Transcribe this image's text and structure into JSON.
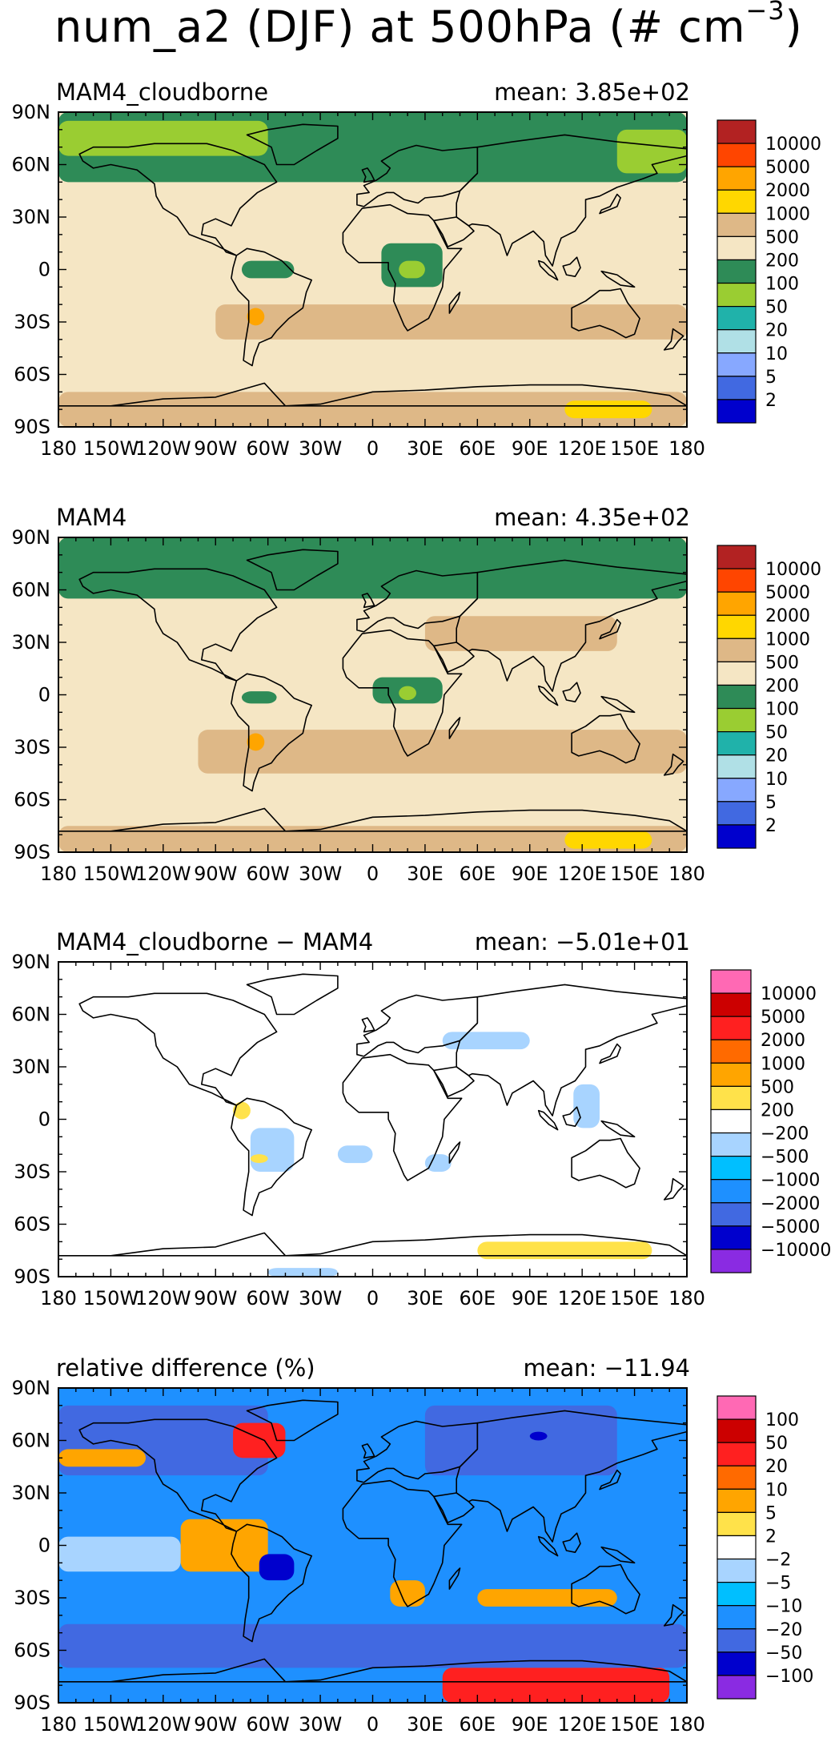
{
  "figure": {
    "title_main": "num_a2 (DJF) at 500hPa (# cm",
    "title_exp": "−3",
    "title_end": ")"
  },
  "chart_data": [
    {
      "type": "heatmap",
      "title": "MAM4_cloudborne",
      "mean_label": "mean: 3.85e+02",
      "x_ticks": [
        "180",
        "150W",
        "120W",
        "90W",
        "60W",
        "30W",
        "0",
        "30E",
        "60E",
        "90E",
        "120E",
        "150E",
        "180"
      ],
      "y_ticks": [
        "90N",
        "60N",
        "30N",
        "0",
        "30S",
        "60S",
        "90S"
      ],
      "colorbar_levels": [
        "10000",
        "5000",
        "2000",
        "1000",
        "500",
        "200",
        "100",
        "50",
        "20",
        "10",
        "5",
        "2"
      ],
      "colorbar_colors": [
        "#b22222",
        "#ff4500",
        "#ffa500",
        "#ffd700",
        "#deb887",
        "#f5e6c4",
        "#2e8b57",
        "#9acd32",
        "#20b2aa",
        "#b0e0e6",
        "#87a8ff",
        "#4169e1",
        "#0000cd"
      ],
      "base_color": "#f5e6c4",
      "features": [
        {
          "color": "#2e8b57",
          "lon": [
            -180,
            180
          ],
          "lat": [
            50,
            90
          ]
        },
        {
          "color": "#9acd32",
          "lon": [
            -180,
            -60
          ],
          "lat": [
            65,
            85
          ]
        },
        {
          "color": "#9acd32",
          "lon": [
            140,
            180
          ],
          "lat": [
            55,
            80
          ]
        },
        {
          "color": "#deb887",
          "lon": [
            -90,
            180
          ],
          "lat": [
            -40,
            -20
          ]
        },
        {
          "color": "#deb887",
          "lon": [
            -180,
            180
          ],
          "lat": [
            -90,
            -70
          ]
        },
        {
          "color": "#2e8b57",
          "lon": [
            5,
            40
          ],
          "lat": [
            -10,
            15
          ]
        },
        {
          "color": "#9acd32",
          "lon": [
            15,
            30
          ],
          "lat": [
            -5,
            5
          ]
        },
        {
          "color": "#2e8b57",
          "lon": [
            -75,
            -45
          ],
          "lat": [
            -5,
            5
          ]
        },
        {
          "color": "#ffa500",
          "lon": [
            -72,
            -62
          ],
          "lat": [
            -32,
            -22
          ]
        },
        {
          "color": "#ffd700",
          "lon": [
            110,
            160
          ],
          "lat": [
            -85,
            -75
          ]
        }
      ]
    },
    {
      "type": "heatmap",
      "title": "MAM4",
      "mean_label": "mean: 4.35e+02",
      "x_ticks": [
        "180",
        "150W",
        "120W",
        "90W",
        "60W",
        "30W",
        "0",
        "30E",
        "60E",
        "90E",
        "120E",
        "150E",
        "180"
      ],
      "y_ticks": [
        "90N",
        "60N",
        "30N",
        "0",
        "30S",
        "60S",
        "90S"
      ],
      "colorbar_levels": [
        "10000",
        "5000",
        "2000",
        "1000",
        "500",
        "200",
        "100",
        "50",
        "20",
        "10",
        "5",
        "2"
      ],
      "colorbar_colors": [
        "#b22222",
        "#ff4500",
        "#ffa500",
        "#ffd700",
        "#deb887",
        "#f5e6c4",
        "#2e8b57",
        "#9acd32",
        "#20b2aa",
        "#b0e0e6",
        "#87a8ff",
        "#4169e1",
        "#0000cd"
      ],
      "base_color": "#f5e6c4",
      "features": [
        {
          "color": "#2e8b57",
          "lon": [
            -180,
            180
          ],
          "lat": [
            55,
            90
          ]
        },
        {
          "color": "#deb887",
          "lon": [
            -100,
            180
          ],
          "lat": [
            -45,
            -20
          ]
        },
        {
          "color": "#deb887",
          "lon": [
            30,
            140
          ],
          "lat": [
            25,
            45
          ]
        },
        {
          "color": "#deb887",
          "lon": [
            -180,
            180
          ],
          "lat": [
            -90,
            -75
          ]
        },
        {
          "color": "#2e8b57",
          "lon": [
            0,
            40
          ],
          "lat": [
            -5,
            10
          ]
        },
        {
          "color": "#9acd32",
          "lon": [
            15,
            25
          ],
          "lat": [
            -3,
            5
          ]
        },
        {
          "color": "#2e8b57",
          "lon": [
            -75,
            -55
          ],
          "lat": [
            -5,
            2
          ]
        },
        {
          "color": "#ffa500",
          "lon": [
            -72,
            -62
          ],
          "lat": [
            -32,
            -22
          ]
        },
        {
          "color": "#ffd700",
          "lon": [
            110,
            160
          ],
          "lat": [
            -88,
            -78
          ]
        }
      ]
    },
    {
      "type": "heatmap",
      "title": "MAM4_cloudborne − MAM4",
      "mean_label": "mean: −5.01e+01",
      "x_ticks": [
        "180",
        "150W",
        "120W",
        "90W",
        "60W",
        "30W",
        "0",
        "30E",
        "60E",
        "90E",
        "120E",
        "150E",
        "180"
      ],
      "y_ticks": [
        "90N",
        "60N",
        "30N",
        "0",
        "30S",
        "60S",
        "90S"
      ],
      "colorbar_levels": [
        "10000",
        "5000",
        "2000",
        "1000",
        "500",
        "200",
        "−200",
        "−500",
        "−1000",
        "−2000",
        "−5000",
        "−10000"
      ],
      "colorbar_colors": [
        "#ff69b4",
        "#cc0000",
        "#ff2020",
        "#ff6a00",
        "#ffa500",
        "#ffe24a",
        "#ffffff",
        "#a8d4ff",
        "#00bfff",
        "#1e90ff",
        "#4169e1",
        "#0000cd",
        "#8a2be2"
      ],
      "base_color": "#ffffff",
      "features": [
        {
          "color": "#a8d4ff",
          "lon": [
            40,
            90
          ],
          "lat": [
            40,
            50
          ]
        },
        {
          "color": "#a8d4ff",
          "lon": [
            115,
            130
          ],
          "lat": [
            -5,
            20
          ]
        },
        {
          "color": "#a8d4ff",
          "lon": [
            -70,
            -45
          ],
          "lat": [
            -30,
            -5
          ]
        },
        {
          "color": "#a8d4ff",
          "lon": [
            -20,
            0
          ],
          "lat": [
            -25,
            -15
          ]
        },
        {
          "color": "#a8d4ff",
          "lon": [
            30,
            45
          ],
          "lat": [
            -30,
            -20
          ]
        },
        {
          "color": "#ffe24a",
          "lon": [
            -80,
            -70
          ],
          "lat": [
            0,
            10
          ]
        },
        {
          "color": "#ffe24a",
          "lon": [
            -70,
            -60
          ],
          "lat": [
            -25,
            -20
          ]
        },
        {
          "color": "#ffe24a",
          "lon": [
            60,
            160
          ],
          "lat": [
            -80,
            -70
          ]
        },
        {
          "color": "#a8d4ff",
          "lon": [
            -60,
            -20
          ],
          "lat": [
            -90,
            -85
          ]
        }
      ]
    },
    {
      "type": "heatmap",
      "title": "relative difference (%)",
      "mean_label": "mean: −11.94",
      "x_ticks": [
        "180",
        "150W",
        "120W",
        "90W",
        "60W",
        "30W",
        "0",
        "30E",
        "60E",
        "90E",
        "120E",
        "150E",
        "180"
      ],
      "y_ticks": [
        "90N",
        "60N",
        "30N",
        "0",
        "30S",
        "60S",
        "90S"
      ],
      "colorbar_levels": [
        "100",
        "50",
        "20",
        "10",
        "5",
        "2",
        "−2",
        "−5",
        "−10",
        "−20",
        "−50",
        "−100"
      ],
      "colorbar_colors": [
        "#ff69b4",
        "#cc0000",
        "#ff2020",
        "#ff6a00",
        "#ffa500",
        "#ffe24a",
        "#ffffff",
        "#a8d4ff",
        "#00bfff",
        "#1e90ff",
        "#4169e1",
        "#0000cd",
        "#8a2be2"
      ],
      "base_color": "#1e90ff",
      "features": [
        {
          "color": "#4169e1",
          "lon": [
            -180,
            -60
          ],
          "lat": [
            40,
            80
          ]
        },
        {
          "color": "#4169e1",
          "lon": [
            30,
            140
          ],
          "lat": [
            40,
            80
          ]
        },
        {
          "color": "#4169e1",
          "lon": [
            -180,
            180
          ],
          "lat": [
            -70,
            -45
          ]
        },
        {
          "color": "#ff2020",
          "lon": [
            -80,
            -50
          ],
          "lat": [
            50,
            70
          ]
        },
        {
          "color": "#ffa500",
          "lon": [
            -110,
            -60
          ],
          "lat": [
            -15,
            15
          ]
        },
        {
          "color": "#a8d4ff",
          "lon": [
            -180,
            -110
          ],
          "lat": [
            -15,
            5
          ]
        },
        {
          "color": "#0000cd",
          "lon": [
            -65,
            -45
          ],
          "lat": [
            -20,
            -5
          ]
        },
        {
          "color": "#ffa500",
          "lon": [
            10,
            30
          ],
          "lat": [
            -35,
            -20
          ]
        },
        {
          "color": "#ffa500",
          "lon": [
            60,
            140
          ],
          "lat": [
            -35,
            -25
          ]
        },
        {
          "color": "#ff2020",
          "lon": [
            40,
            170
          ],
          "lat": [
            -90,
            -70
          ]
        },
        {
          "color": "#0000cd",
          "lon": [
            90,
            100
          ],
          "lat": [
            60,
            65
          ]
        },
        {
          "color": "#ffa500",
          "lon": [
            -180,
            -130
          ],
          "lat": [
            45,
            55
          ]
        }
      ]
    }
  ]
}
